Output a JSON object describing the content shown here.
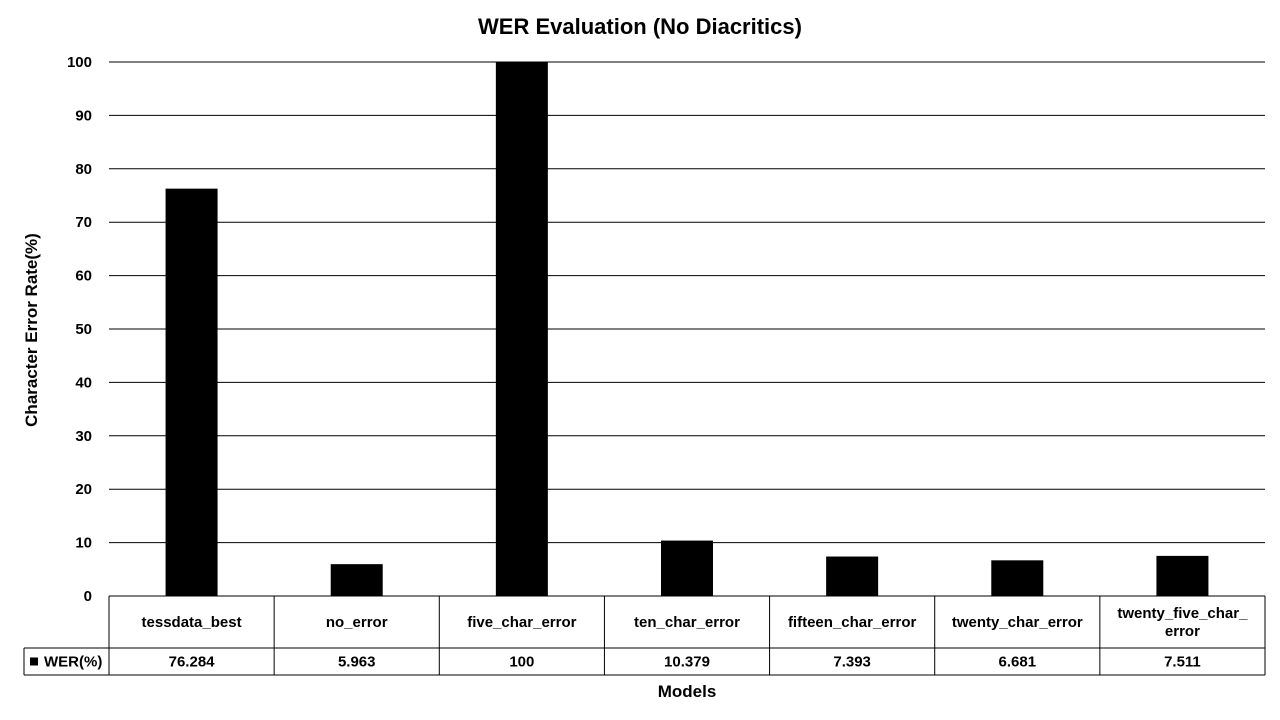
{
  "chart_data": {
    "type": "bar",
    "title": "WER Evaluation (No Diacritics)",
    "xlabel": "Models",
    "ylabel": "Character Error Rate(%)",
    "ylim": [
      0,
      100
    ],
    "yticks": [
      0,
      10,
      20,
      30,
      40,
      50,
      60,
      70,
      80,
      90,
      100
    ],
    "grid": true,
    "legend": "data-table",
    "categories": [
      [
        "tessdata_best"
      ],
      [
        "no_error"
      ],
      [
        "five_char_error"
      ],
      [
        "ten_char_error"
      ],
      [
        "fifteen_char_error"
      ],
      [
        "twenty_char_error"
      ],
      [
        "twenty_five_char_",
        "error"
      ]
    ],
    "series": [
      {
        "name": "WER(%)",
        "color": "#000000",
        "values": [
          76.284,
          5.963,
          100,
          10.379,
          7.393,
          6.681,
          7.511
        ],
        "labels": [
          "76.284",
          "5.963",
          "100",
          "10.379",
          "7.393",
          "6.681",
          "7.511"
        ]
      }
    ]
  }
}
